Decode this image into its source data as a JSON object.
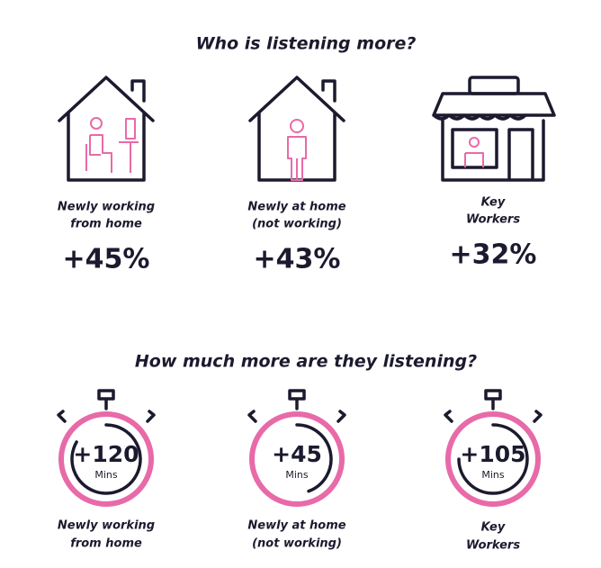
{
  "sections": [
    {
      "title": "Who is listening more?",
      "items": [
        {
          "label": [
            "Newly working",
            "from home"
          ],
          "value": "+45%"
        },
        {
          "label": [
            "Newly at home",
            "(not working)"
          ],
          "value": "+43%"
        },
        {
          "label": [
            "Key",
            "Workers"
          ],
          "value": "+32%"
        }
      ]
    },
    {
      "title": "How much more are they listening?",
      "items": [
        {
          "label": [
            "Newly working",
            "from home"
          ],
          "value": "+120",
          "unit": "Mins"
        },
        {
          "label": [
            "Newly at home",
            "(not working)"
          ],
          "value": "+45",
          "unit": "Mins"
        },
        {
          "label": [
            "Key",
            "Workers"
          ],
          "value": "+105",
          "unit": "Mins"
        }
      ]
    }
  ]
}
